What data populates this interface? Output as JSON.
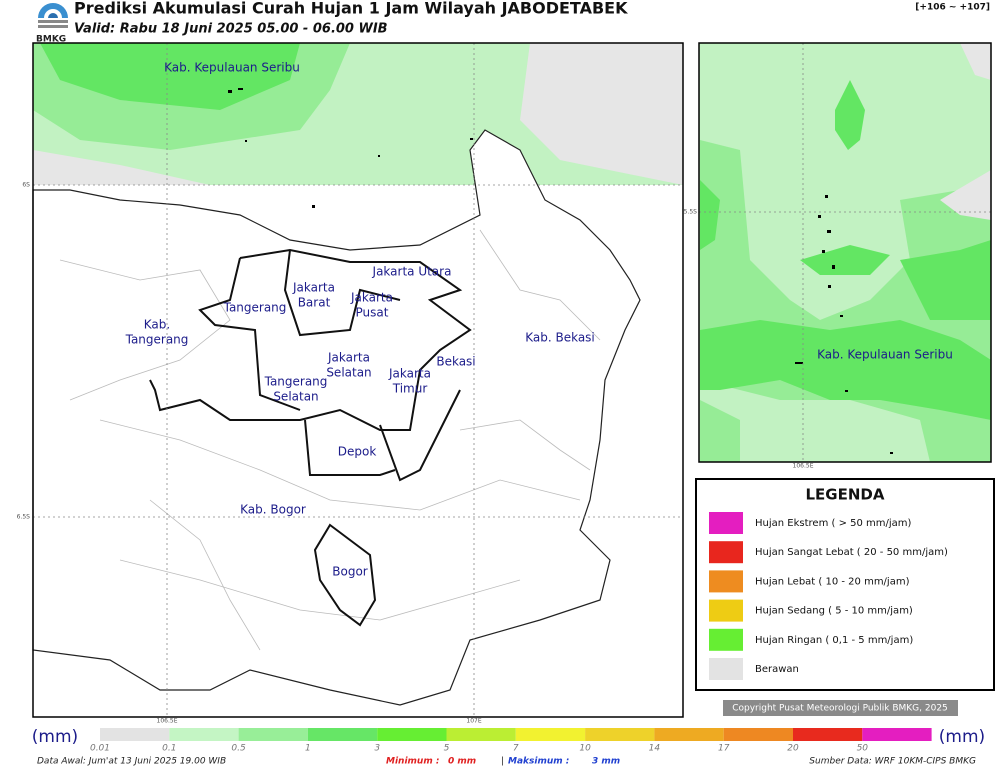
{
  "header": {
    "logo": "BMKG",
    "title": "Prediksi Akumulasi Curah Hujan 1 Jam Wilayah JABODETABEK",
    "valid": "Valid: Rabu 18 Juni 2025 05.00 - 06.00 WIB",
    "range": "[+106 ~ +107]"
  },
  "main_map": {
    "labels": [
      [
        "Kab. Kepulauan Seribu"
      ],
      [
        "Jakarta Utara"
      ],
      [
        "Jakarta",
        "Barat"
      ],
      [
        "Jakarta",
        "Pusat"
      ],
      [
        "Tangerang"
      ],
      [
        "Kab.",
        "Tangerang"
      ],
      [
        "Jakarta",
        "Selatan"
      ],
      [
        "Jakarta",
        "Timur"
      ],
      [
        "Bekasi"
      ],
      [
        "Kab. Bekasi"
      ],
      [
        "Tangerang",
        "Selatan"
      ],
      [
        "Depok"
      ],
      [
        "Kab. Bogor"
      ],
      [
        "Bogor"
      ]
    ],
    "lat_labels": [
      "6S",
      "6.5S"
    ],
    "lon_labels": [
      "106.5E",
      "107E"
    ]
  },
  "inset_map": {
    "labels": [
      [
        "Kab. Kepulauan Seribu"
      ]
    ],
    "lat_labels": [
      "5.5S"
    ],
    "lon_labels": [
      "106.5E"
    ]
  },
  "legend": {
    "title": "LEGENDA",
    "items": [
      "Hujan Ekstrem ( > 50 mm/jam)",
      "Hujan Sangat Lebat ( 20 - 50 mm/jam)",
      "Hujan Lebat ( 10 - 20 mm/jam)",
      "Hujan Sedang ( 5 - 10 mm/jam)",
      "Hujan Ringan ( 0,1 - 5 mm/jam)",
      "Berawan"
    ]
  },
  "copyright": "Copyright Pusat Meteorologi Publik BMKG, 2025",
  "colorbar": {
    "unit": "(mm)",
    "ticks": [
      "0.01",
      "0.1",
      "0.5",
      "1",
      "3",
      "5",
      "7",
      "10",
      "14",
      "17",
      "20",
      "50"
    ]
  },
  "footer": {
    "data_awal": "Data Awal: Jum'at 13 Juni 2025 19.00 WIB",
    "minimum_label": "Minimum :",
    "minimum": "0 mm",
    "separator": "|",
    "maximum_label": "Maksimum :",
    "maximum": "3 mm",
    "source": "Sumber Data: WRF 10KM-CIPS BMKG"
  }
}
